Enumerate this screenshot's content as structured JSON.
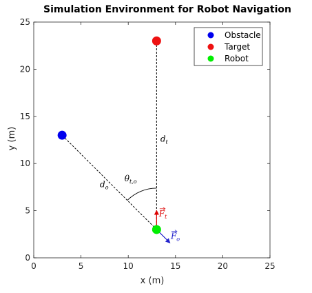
{
  "chart_data": {
    "type": "scatter",
    "title": "Simulation Environment for Robot Navigation",
    "xlabel": "x (m)",
    "ylabel": "y (m)",
    "xlim": [
      0,
      25
    ],
    "ylim": [
      0,
      25
    ],
    "xticks": [
      0,
      5,
      10,
      15,
      20,
      25
    ],
    "yticks": [
      0,
      5,
      10,
      15,
      20,
      25
    ],
    "grid": false,
    "legend_position": "top-right",
    "series": [
      {
        "name": "Obstacle",
        "color": "#0000ee",
        "x": [
          3
        ],
        "y": [
          13
        ]
      },
      {
        "name": "Target",
        "color": "#ee1111",
        "x": [
          13
        ],
        "y": [
          23
        ]
      },
      {
        "name": "Robot",
        "color": "#00ee00",
        "x": [
          13
        ],
        "y": [
          3
        ]
      }
    ],
    "lines": [
      {
        "label": "d",
        "subscript": "o",
        "from": [
          13,
          3
        ],
        "to": [
          3,
          13
        ],
        "style": "dashed",
        "label_at": [
          7,
          7.5
        ]
      },
      {
        "label": "d",
        "subscript": "t",
        "from": [
          13,
          3
        ],
        "to": [
          13,
          23
        ],
        "style": "dashed",
        "label_at": [
          13.4,
          12.3
        ]
      }
    ],
    "angle_annotation": {
      "label": "θ",
      "subscript": "t,o",
      "label_at": [
        9.6,
        8.1
      ]
    },
    "vectors": [
      {
        "label": "F",
        "subscript": "t",
        "color": "#dd0000",
        "from": [
          13,
          3
        ],
        "to": [
          13,
          5.0
        ],
        "label_at": [
          13.25,
          4.4
        ]
      },
      {
        "label": "F",
        "subscript": "o",
        "color": "#2222cc",
        "from": [
          13,
          3
        ],
        "to": [
          14.4,
          1.6
        ],
        "label_at": [
          14.5,
          2.0
        ]
      }
    ]
  }
}
